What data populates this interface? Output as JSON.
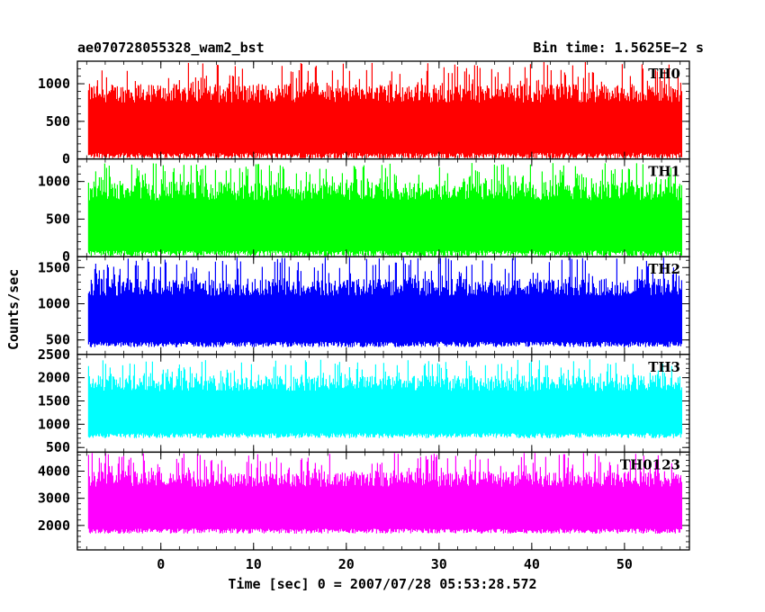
{
  "header": {
    "obs_id": "ae070728055328_wam2_bst",
    "bin_time": "Bin time: 1.5625E−2 s"
  },
  "chart_data": {
    "type": "line",
    "xlabel": "Time [sec] 0 = 2007/07/28 05:53:28.572",
    "ylabel": "Counts/sec",
    "xlim": [
      -9,
      57
    ],
    "x_ticks": [
      0,
      10,
      20,
      30,
      40,
      50
    ],
    "data_x_range": [
      -7.8,
      56.2
    ],
    "series": [
      {
        "name": "TH0",
        "color": "#ff0000",
        "ylim": [
          0,
          1300
        ],
        "y_ticks": [
          0,
          500,
          1000
        ],
        "base": 0,
        "peak": 1000,
        "spike_max": 1300
      },
      {
        "name": "TH1",
        "color": "#00ff00",
        "ylim": [
          0,
          1300
        ],
        "y_ticks": [
          0,
          500,
          1000
        ],
        "base": 0,
        "peak": 1000,
        "spike_max": 1250
      },
      {
        "name": "TH2",
        "color": "#0000ff",
        "ylim": [
          300,
          1650
        ],
        "y_ticks": [
          500,
          1000,
          1500
        ],
        "base": 400,
        "peak": 1350,
        "spike_max": 1650
      },
      {
        "name": "TH3",
        "color": "#00ffff",
        "ylim": [
          400,
          2500
        ],
        "y_ticks": [
          500,
          1000,
          1500,
          2000,
          2500
        ],
        "base": 700,
        "peak": 2050,
        "spike_max": 2400
      },
      {
        "name": "TH0123",
        "color": "#ff00ff",
        "ylim": [
          1100,
          4700
        ],
        "y_ticks": [
          2000,
          3000,
          4000
        ],
        "base": 1700,
        "peak": 4000,
        "spike_max": 4700
      }
    ]
  }
}
